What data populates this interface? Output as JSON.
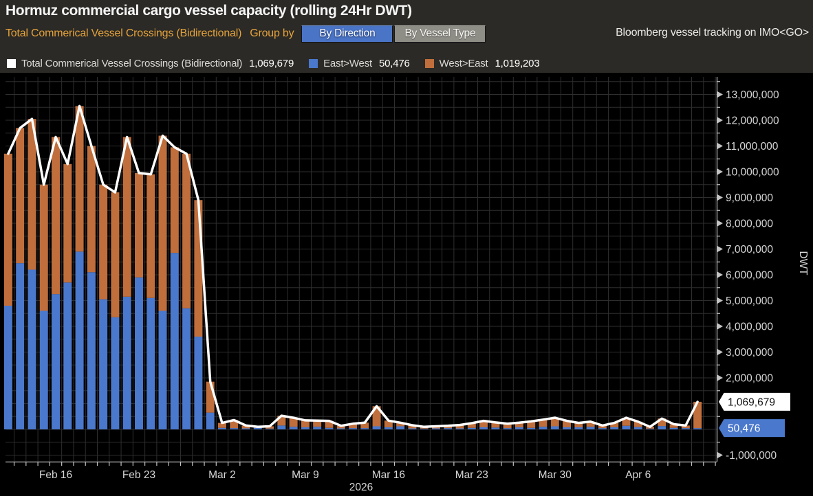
{
  "header": {
    "title": "Hormuz commercial cargo vessel capacity (rolling 24Hr DWT)",
    "subtitle": "Total Commerical Vessel Crossings (Bidirectional)",
    "group_by_label": "Group by",
    "buttons": [
      {
        "label": "By Direction",
        "selected": true
      },
      {
        "label": "By Vessel Type",
        "selected": false
      }
    ],
    "source_note": "Bloomberg vessel tracking on IMO<GO>"
  },
  "legend": [
    {
      "swatch": "#ffffff",
      "label": "Total Commerical Vessel Crossings (Bidirectional)",
      "value": "1,069,679"
    },
    {
      "swatch": "#4a78cc",
      "label": "East>West",
      "value": "50,476"
    },
    {
      "swatch": "#bf6e3c",
      "label": "West>East",
      "value": "1,019,203"
    }
  ],
  "axis_tags": [
    {
      "text": "1,069,679",
      "value": 1069679,
      "bg": "#ffffff",
      "fg": "#111111"
    },
    {
      "text": "50,476",
      "value": 50476,
      "bg": "#4a78cc",
      "fg": "#ffffff"
    }
  ],
  "chart_data": {
    "type": "bar",
    "subtype": "stacked-bars-with-total-line",
    "title": "Hormuz commercial cargo vessel capacity (rolling 24Hr DWT)",
    "xlabel": "",
    "ylabel": "DWT",
    "year_label": "2026",
    "ylim": [
      -1250000,
      13700000
    ],
    "ytick_label_interval": 1000000,
    "ytick_minor_interval": 500000,
    "ytick_labels_hidden_behind_tags": [
      0,
      1000000
    ],
    "grid": true,
    "legend_position": "top",
    "colors": {
      "east": "#4a78cc",
      "west": "#bf6e3c",
      "total_line": "#ffffff",
      "grid": "#2e2e2e",
      "axis": "#c3c3c3",
      "tick_text": "#d6d6d6"
    },
    "x": [
      "Feb 12",
      "Feb 13",
      "Feb 14",
      "Feb 15",
      "Feb 16",
      "Feb 17",
      "Feb 18",
      "Feb 19",
      "Feb 20",
      "Feb 21",
      "Feb 22",
      "Feb 23",
      "Feb 24",
      "Feb 25",
      "Feb 26",
      "Feb 27",
      "Feb 28",
      "Mar 1",
      "Mar 2",
      "Mar 3",
      "Mar 4",
      "Mar 5",
      "Mar 6",
      "Mar 7",
      "Mar 8",
      "Mar 9",
      "Mar 10",
      "Mar 11",
      "Mar 12",
      "Mar 13",
      "Mar 14",
      "Mar 15",
      "Mar 16",
      "Mar 17",
      "Mar 18",
      "Mar 19",
      "Mar 20",
      "Mar 21",
      "Mar 22",
      "Mar 23",
      "Mar 24",
      "Mar 25",
      "Mar 26",
      "Mar 27",
      "Mar 28",
      "Mar 29",
      "Mar 30",
      "Mar 31",
      "Apr 1",
      "Apr 2",
      "Apr 3",
      "Apr 4",
      "Apr 5",
      "Apr 6",
      "Apr 7",
      "Apr 8",
      "Apr 9",
      "Apr 10",
      "Apr 11"
    ],
    "xticks": [
      {
        "label": "Feb 16",
        "index": 4
      },
      {
        "label": "Feb 23",
        "index": 11
      },
      {
        "label": "Mar 2",
        "index": 18
      },
      {
        "label": "Mar 9",
        "index": 25
      },
      {
        "label": "Mar 16",
        "index": 32
      },
      {
        "label": "Mar 23",
        "index": 39
      },
      {
        "label": "Mar 30",
        "index": 46
      },
      {
        "label": "Apr 6",
        "index": 53
      }
    ],
    "series": [
      {
        "name": "East>West",
        "type": "bar",
        "color": "#4a78cc",
        "current_value": 50476,
        "values": [
          4800000,
          6450000,
          6200000,
          4600000,
          5250000,
          5700000,
          6900000,
          6100000,
          5050000,
          4350000,
          5150000,
          5900000,
          5100000,
          4600000,
          6850000,
          4700000,
          3600000,
          650000,
          60000,
          50000,
          40000,
          60000,
          30000,
          150000,
          100000,
          80000,
          100000,
          60000,
          40000,
          50000,
          50000,
          120000,
          80000,
          120000,
          40000,
          30000,
          40000,
          50000,
          40000,
          60000,
          80000,
          70000,
          50000,
          80000,
          60000,
          100000,
          120000,
          80000,
          80000,
          100000,
          50000,
          80000,
          140000,
          90000,
          30000,
          130000,
          60000,
          50000,
          50476
        ]
      },
      {
        "name": "West>East",
        "type": "bar",
        "color": "#bf6e3c",
        "current_value": 1019203,
        "values": [
          5900000,
          5250000,
          5850000,
          4900000,
          6100000,
          4600000,
          5650000,
          4900000,
          4450000,
          4850000,
          6200000,
          4050000,
          4800000,
          6800000,
          4100000,
          6000000,
          5300000,
          1200000,
          190000,
          310000,
          110000,
          40000,
          90000,
          380000,
          350000,
          270000,
          240000,
          270000,
          100000,
          170000,
          210000,
          780000,
          260000,
          140000,
          120000,
          70000,
          80000,
          90000,
          130000,
          180000,
          250000,
          200000,
          170000,
          180000,
          250000,
          280000,
          330000,
          250000,
          170000,
          200000,
          100000,
          170000,
          310000,
          210000,
          70000,
          290000,
          140000,
          100000,
          1019203
        ]
      },
      {
        "name": "Total Commerical Vessel Crossings (Bidirectional)",
        "type": "line",
        "color": "#ffffff",
        "current_value": 1069679,
        "derived": "sum of East>West and West>East"
      }
    ]
  }
}
